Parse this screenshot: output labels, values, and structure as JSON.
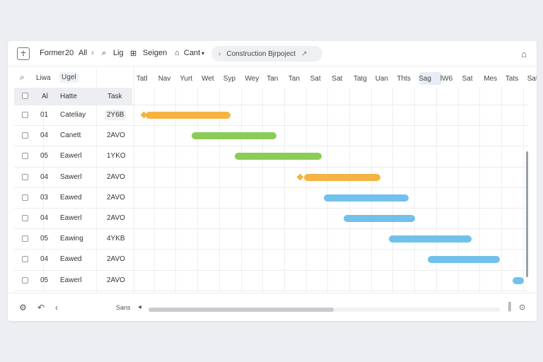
{
  "toolbar": {
    "items": [
      "Former",
      "20",
      "All",
      "Lig",
      "Seigen",
      "Cant"
    ],
    "breadcrumb": "Construction Bjrpoject"
  },
  "left_panel": {
    "header": [
      "Liwa",
      "Ugel"
    ],
    "columns": [
      "Al",
      "Hatte",
      "Task"
    ],
    "rows": [
      {
        "num": "01",
        "name": "Cateliay",
        "duration": "2Y6B"
      },
      {
        "num": "04",
        "name": "Canett",
        "duration": "2AVO"
      },
      {
        "num": "05",
        "name": "Eawerl",
        "duration": "1YKO"
      },
      {
        "num": "04",
        "name": "Sawerl",
        "duration": "2AVO"
      },
      {
        "num": "03",
        "name": "Eawed",
        "duration": "2AVO"
      },
      {
        "num": "04",
        "name": "Eawerl",
        "duration": "2AVO"
      },
      {
        "num": "05",
        "name": "Eawing",
        "duration": "4YKB"
      },
      {
        "num": "04",
        "name": "Eawed",
        "duration": "2AVO"
      },
      {
        "num": "05",
        "name": "Eawerl",
        "duration": "2AVO"
      }
    ]
  },
  "timeline": {
    "days": [
      "Tatl",
      "Nav",
      "Yurt",
      "Wet",
      "Syp",
      "Wey",
      "Tan",
      "Tan",
      "Sat",
      "Sat",
      "Tatg",
      "Uan",
      "Thts",
      "Sag",
      "lW6",
      "Sat",
      "Mes",
      "Tats",
      "Sat"
    ],
    "selected_day_index": 14
  },
  "gantt": {
    "bars": [
      {
        "row": 0,
        "start": 0.5,
        "end": 4.4,
        "color": "orange",
        "milestone_at": 0.3
      },
      {
        "row": 1,
        "start": 2.6,
        "end": 6.5,
        "color": "green"
      },
      {
        "row": 2,
        "start": 4.6,
        "end": 8.6,
        "color": "green"
      },
      {
        "row": 3,
        "start": 7.8,
        "end": 11.3,
        "color": "orange",
        "milestone_at": 7.5
      },
      {
        "row": 4,
        "start": 8.7,
        "end": 12.6,
        "color": "blue"
      },
      {
        "row": 5,
        "start": 9.6,
        "end": 12.9,
        "color": "blue"
      },
      {
        "row": 6,
        "start": 11.7,
        "end": 15.5,
        "color": "blue"
      },
      {
        "row": 7,
        "start": 13.5,
        "end": 16.8,
        "color": "blue"
      },
      {
        "row": 8,
        "start": 17.4,
        "end": 17.9,
        "color": "blue"
      }
    ]
  },
  "footer": {
    "label": "Sans"
  },
  "colors": {
    "orange": "#f5b441",
    "green": "#8bcc57",
    "blue": "#72c0ec"
  }
}
